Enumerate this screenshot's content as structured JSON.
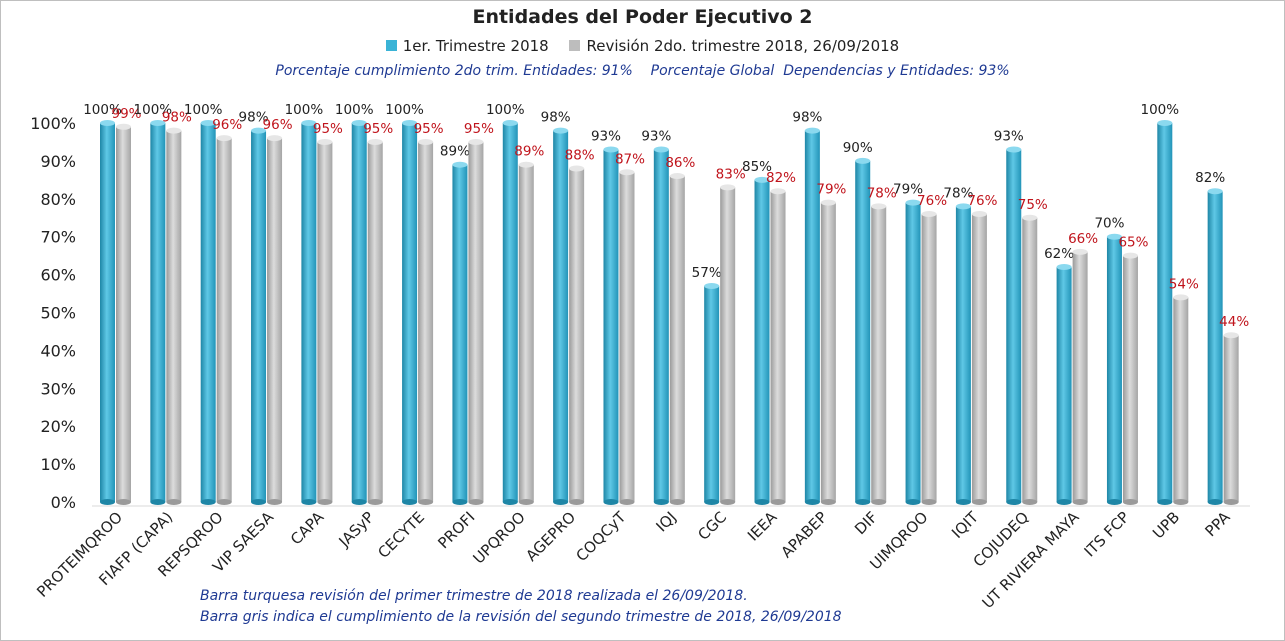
{
  "chart_data": {
    "type": "bar",
    "title": "Entidades del Poder Ejecutivo 2",
    "subtitle": "Porcentaje cumplimiento 2do trim. Entidades: 91%    Porcentaje Global  Dependencias y Entidades: 93%",
    "categories": [
      "PROTEIMQROO",
      "FIAFP (CAPA)",
      "REPSQROO",
      "VIP SAESA",
      "CAPA",
      "JASyP",
      "CECYTE",
      "PROFI",
      "UPQROO",
      "AGEPRO",
      "COQCyT",
      "IQJ",
      "CGC",
      "IEEA",
      "APABEP",
      "DIF",
      "UIMQROO",
      "IQIT",
      "COJUDEQ",
      "UT RIVIERA MAYA",
      "ITS FCP",
      "UPB",
      "PPA"
    ],
    "series": [
      {
        "name": "1er. Trimestre 2018",
        "color": "#3ab3d6",
        "label_color": "#222222",
        "values": [
          100,
          100,
          100,
          98,
          100,
          100,
          100,
          89,
          100,
          98,
          93,
          93,
          57,
          85,
          98,
          90,
          79,
          78,
          93,
          62,
          70,
          100,
          82
        ]
      },
      {
        "name": "Revisión 2do. trimestre 2018, 26/09/2018",
        "color": "#bdbdbd",
        "label_color": "#c0141c",
        "values": [
          99,
          98,
          96,
          96,
          95,
          95,
          95,
          95,
          89,
          88,
          87,
          86,
          83,
          82,
          79,
          78,
          76,
          76,
          75,
          66,
          65,
          54,
          44
        ]
      }
    ],
    "ylim": [
      0,
      100
    ],
    "yticks": [
      "0%",
      "10%",
      "20%",
      "30%",
      "40%",
      "50%",
      "60%",
      "70%",
      "80%",
      "90%",
      "100%"
    ],
    "grid": false,
    "legend": "top-center",
    "notes": [
      "Barra turquesa revisión del primer trimestre de 2018 realizada el 26/09/2018.",
      "Barra gris indica el cumplimiento de la revisión  del segundo trimestre de 2018,  26/09/2018"
    ]
  }
}
